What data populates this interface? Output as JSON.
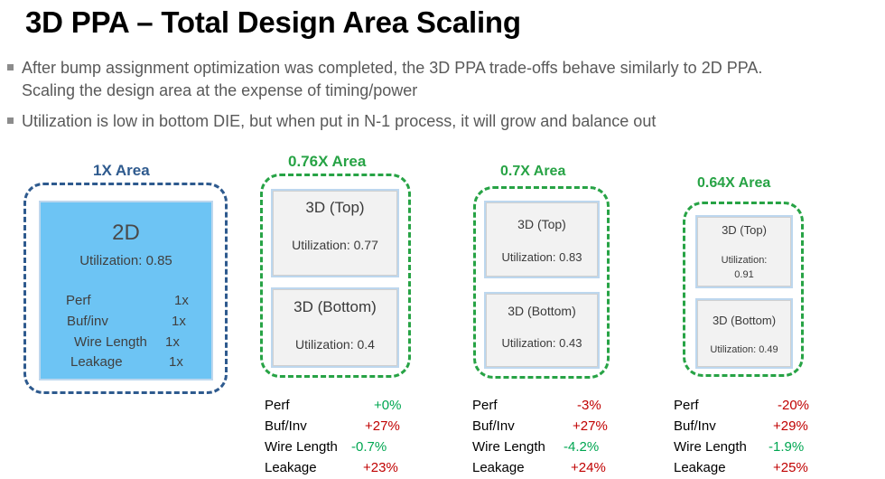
{
  "title": "3D PPA – Total Design Area Scaling",
  "bullets": [
    {
      "line1": "After bump assignment optimization was completed, the 3D PPA trade-offs behave similarly to 2D PPA.",
      "line2": "Scaling the design area at the expense of timing/power"
    },
    {
      "line1": "Utilization is low in bottom DIE, but when put in N-1 process, it will grow and balance out"
    }
  ],
  "colors": {
    "baseline_frame": "#2e5a8e",
    "scaled_frame": "#27a345",
    "die_2d_fill": "#6dc4f4",
    "positive": "#00a651",
    "negative": "#c00000"
  },
  "baseline": {
    "area_label": "1X Area",
    "die_name": "2D",
    "utilization": "Utilization: 0.85",
    "metrics": [
      {
        "label": "Perf",
        "value": "1x"
      },
      {
        "label": "Buf/inv",
        "value": "1x"
      },
      {
        "label": "Wire Length",
        "value": "1x"
      },
      {
        "label": "Leakage",
        "value": "1x"
      }
    ]
  },
  "designs": [
    {
      "area_label": "0.76X Area",
      "top": {
        "name": "3D (Top)",
        "utilization": "Utilization: 0.77"
      },
      "bottom": {
        "name": "3D (Bottom)",
        "utilization": "Utilization: 0.4"
      },
      "metrics": [
        {
          "label": "Perf",
          "value": "+0%"
        },
        {
          "label": "Buf/Inv",
          "value": "+27%"
        },
        {
          "label": "Wire Length",
          "value": "-0.7%"
        },
        {
          "label": "Leakage",
          "value": "+23%"
        }
      ]
    },
    {
      "area_label": "0.7X Area",
      "top": {
        "name": "3D (Top)",
        "utilization": "Utilization: 0.83"
      },
      "bottom": {
        "name": "3D (Bottom)",
        "utilization": "Utilization: 0.43"
      },
      "metrics": [
        {
          "label": "Perf",
          "value": "-3%"
        },
        {
          "label": "Buf/Inv",
          "value": "+27%"
        },
        {
          "label": "Wire Length",
          "value": "-4.2%"
        },
        {
          "label": "Leakage",
          "value": "+24%"
        }
      ]
    },
    {
      "area_label": "0.64X Area",
      "top": {
        "name": "3D (Top)",
        "utilization": "Utilization:",
        "utilization_value": "0.91"
      },
      "bottom": {
        "name": "3D (Bottom)",
        "utilization": "Utilization: 0.49"
      },
      "metrics": [
        {
          "label": "Perf",
          "value": "-20%"
        },
        {
          "label": "Buf/Inv",
          "value": "+29%"
        },
        {
          "label": "Wire Length",
          "value": "-1.9%"
        },
        {
          "label": "Leakage",
          "value": "+25%"
        }
      ]
    }
  ]
}
